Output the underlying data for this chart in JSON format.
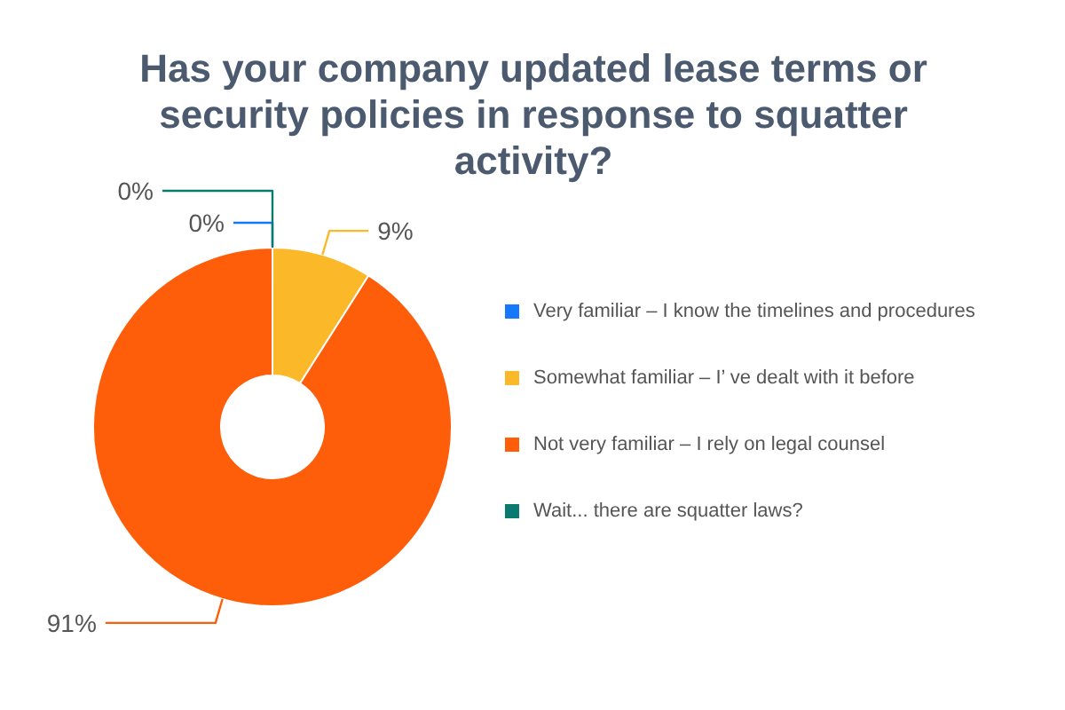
{
  "chart_data": {
    "type": "donut",
    "title": "Has your company updated lease terms or security policies in response to squatter activity?",
    "categories": [
      "Very familiar – I know the timelines and procedures",
      "Somewhat familiar – I’ ve dealt with it before",
      "Not very familiar – I rely on legal counsel",
      "Wait... there are squatter laws?"
    ],
    "values": [
      0,
      9,
      91,
      0
    ],
    "colors": [
      "#1677ff",
      "#fbb829",
      "#fe5e0a",
      "#0a7a70"
    ],
    "value_labels": [
      "0%",
      "9%",
      "91%",
      "0%"
    ],
    "legend": "right"
  }
}
